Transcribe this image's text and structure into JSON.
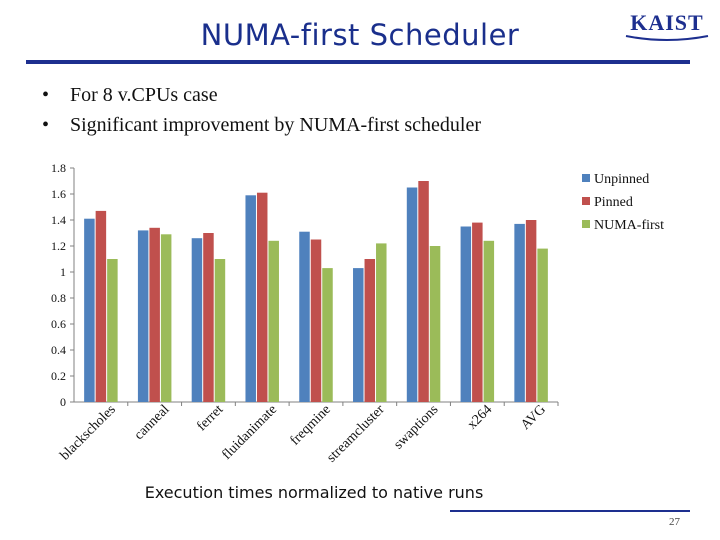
{
  "slide": {
    "title": "NUMA-first  Scheduler",
    "logo_text": "KAIST",
    "bullets": [
      "For 8 v.CPUs case",
      "Significant improvement by NUMA-first scheduler"
    ],
    "caption": "Execution times normalized to native runs",
    "page_number": "27"
  },
  "colors": {
    "title": "#1a2f8c",
    "rule": "#1d2f8f",
    "unpinned": "#4f81bd",
    "pinned": "#c0504d",
    "numa_first": "#9bbb59"
  },
  "chart_data": {
    "type": "bar",
    "categories": [
      "blackscholes",
      "canneal",
      "ferret",
      "fluidanimate",
      "freqmine",
      "streamcluster",
      "swaptions",
      "x264",
      "AVG"
    ],
    "series": [
      {
        "name": "Unpinned",
        "values": [
          1.41,
          1.32,
          1.26,
          1.59,
          1.31,
          1.03,
          1.65,
          1.35,
          1.37
        ]
      },
      {
        "name": "Pinned",
        "values": [
          1.47,
          1.34,
          1.3,
          1.61,
          1.25,
          1.1,
          1.7,
          1.38,
          1.4
        ]
      },
      {
        "name": "NUMA-first",
        "values": [
          1.1,
          1.29,
          1.1,
          1.24,
          1.03,
          1.22,
          1.2,
          1.24,
          1.18
        ]
      }
    ],
    "yticks": [
      "0",
      "0.2",
      "0.4",
      "0.6",
      "0.8",
      "1",
      "1.2",
      "1.4",
      "1.6",
      "1.8"
    ],
    "ylim": [
      0,
      1.8
    ],
    "legend_position": "right",
    "grid": false
  }
}
